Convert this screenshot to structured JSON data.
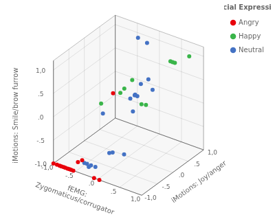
{
  "chart_data": {
    "type": "scatter3d",
    "xlabel": "fEMG:\nZygomaticus/corrugator",
    "ylabel": "iMotions: Joy/anger",
    "zlabel": "iMotions: Smile/brow furrow",
    "legend_title": "Facial Expression",
    "legend": "upper right",
    "grid": true,
    "xlim": [
      -1.0,
      1.0
    ],
    "ylim": [
      -1.0,
      1.0
    ],
    "zlim": [
      -1.0,
      1.2
    ],
    "xticks": [
      {
        "value": -1.0,
        "label": "-1,0"
      },
      {
        "value": -0.5,
        "label": "-.5"
      },
      {
        "value": 0.0,
        "label": ".0"
      },
      {
        "value": 0.5,
        "label": ".5"
      },
      {
        "value": 1.0,
        "label": "1,0"
      }
    ],
    "yticks": [
      {
        "value": -1.0,
        "label": "-1,0"
      },
      {
        "value": -0.5,
        "label": "-.5"
      },
      {
        "value": 0.0,
        "label": ".0"
      },
      {
        "value": 0.5,
        "label": ".5"
      },
      {
        "value": 1.0,
        "label": "1,0"
      }
    ],
    "zticks": [
      {
        "value": -1.0,
        "label": "-1,0"
      },
      {
        "value": -0.5,
        "label": "-.5"
      },
      {
        "value": 0.0,
        "label": ".0"
      },
      {
        "value": 0.5,
        "label": ".5"
      },
      {
        "value": 1.0,
        "label": "1,0"
      }
    ],
    "series": [
      {
        "name": "Angry",
        "color": "#e8000b",
        "values": [
          [
            -1.0,
            -1.0,
            -1.0
          ],
          [
            -0.92,
            -1.0,
            -1.0
          ],
          [
            -0.86,
            -1.0,
            -1.0
          ],
          [
            -0.82,
            -1.0,
            -1.0
          ],
          [
            -0.77,
            -1.0,
            -1.0
          ],
          [
            -0.73,
            -1.0,
            -1.0
          ],
          [
            -0.68,
            -1.0,
            -1.0
          ],
          [
            -0.64,
            -1.0,
            -1.0
          ],
          [
            -0.6,
            -1.0,
            -1.0
          ],
          [
            -0.55,
            -1.0,
            -1.0
          ],
          [
            -0.48,
            -0.95,
            -0.82
          ],
          [
            -0.42,
            -0.9,
            -0.78
          ],
          [
            -0.08,
            -1.0,
            -1.0
          ],
          [
            0.0,
            -0.5,
            0.6
          ],
          [
            0.04,
            -1.0,
            -1.0
          ]
        ]
      },
      {
        "name": "Happy",
        "color": "#3ab54a",
        "values": [
          [
            0.08,
            -1.0,
            0.65
          ],
          [
            0.2,
            -0.55,
            0.7
          ],
          [
            0.22,
            -0.45,
            0.75
          ],
          [
            0.28,
            -0.28,
            0.87
          ],
          [
            0.42,
            -0.18,
            0.35
          ],
          [
            0.5,
            -0.15,
            0.35
          ],
          [
            0.6,
            0.5,
            1.0
          ],
          [
            0.65,
            0.5,
            1.0
          ],
          [
            0.7,
            0.5,
            1.0
          ],
          [
            0.78,
            0.85,
            1.0
          ]
        ]
      },
      {
        "name": "Neutral",
        "color": "#4472c4",
        "values": [
          [
            -0.3,
            -1.0,
            -0.75
          ],
          [
            -0.24,
            -1.0,
            -0.75
          ],
          [
            -0.2,
            -1.0,
            -0.8
          ],
          [
            -0.15,
            -1.0,
            -0.75
          ],
          [
            -0.05,
            -1.0,
            -0.75
          ],
          [
            0.02,
            -0.65,
            -0.6
          ],
          [
            0.06,
            -0.6,
            -0.6
          ],
          [
            0.1,
            0.0,
            0.0
          ],
          [
            0.12,
            -1.0,
            0.45
          ],
          [
            0.18,
            -0.2,
            0.4
          ],
          [
            0.22,
            -0.1,
            0.45
          ],
          [
            0.28,
            0.0,
            0.65
          ],
          [
            0.32,
            -0.6,
            -0.55
          ],
          [
            0.42,
            -0.4,
            0.65
          ],
          [
            0.48,
            -0.4,
            0.65
          ],
          [
            0.52,
            -0.1,
            0.88
          ],
          [
            0.58,
            -0.05,
            0.65
          ],
          [
            -0.38,
            0.85,
            1.0
          ],
          [
            -0.28,
            1.0,
            0.85
          ]
        ]
      }
    ]
  }
}
